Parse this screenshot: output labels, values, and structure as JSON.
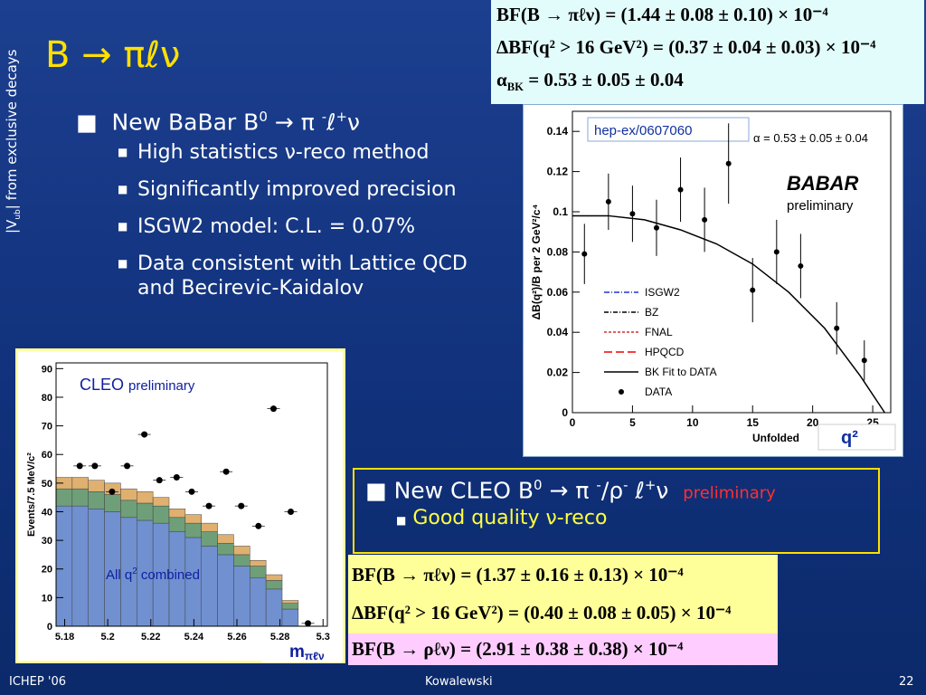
{
  "side_label": [
    "|V",
    "ub",
    "| from exclusive  decays"
  ],
  "title": "B → πℓν",
  "babar": {
    "heading": [
      "New BaBar B",
      "0",
      " → π ",
      "-",
      "ℓ",
      "+",
      "ν"
    ],
    "items": [
      "High statistics ν-reco method",
      "Significantly improved precision",
      "ISGW2 model: C.L. = 0.07%",
      "Data consistent with Lattice QCD and Becirevic-Kaidalov"
    ]
  },
  "babar_results": {
    "lines": [
      "BF(B → πℓν) = (1.44 ± 0.08 ± 0.10) × 10⁻⁴",
      "ΔBF(q² > 16 GeV²) = (0.37 ± 0.04 ± 0.03) × 10⁻⁴"
    ],
    "alpha": [
      "α",
      "BK",
      " = 0.53 ± 0.05 ± 0.04"
    ]
  },
  "babar_plot": {
    "type": "scatter",
    "y_label": "ΔB(q²)/B per 2 GeV²/c⁴",
    "x_label": "Unfolded",
    "x_unit_label": "q²",
    "note": "hep-ex/0607060",
    "fit_label": "α = 0.53 ± 0.05 ± 0.04",
    "logo": "BABAR",
    "logo_sub": "preliminary",
    "xlim": [
      0,
      26.5
    ],
    "ylim": [
      0,
      0.15
    ],
    "xticks": [
      0,
      5,
      10,
      15,
      20,
      25
    ],
    "yticks": [
      0,
      0.02,
      0.04,
      0.06,
      0.08,
      0.1,
      0.12,
      0.14
    ],
    "models": [
      {
        "name": "ISGW2",
        "color": "#2233cc",
        "dash": "6 2 1 2"
      },
      {
        "name": "BZ",
        "color": "#000000",
        "dash": "5 2 1 2"
      },
      {
        "name": "FNAL",
        "color": "#cc3333",
        "dash": "3 2"
      },
      {
        "name": "HPQCD",
        "color": "#ee0000",
        "dash": "9 4"
      }
    ],
    "fit": {
      "name": "BK Fit to DATA",
      "color": "#000000",
      "x": [
        0,
        3,
        6,
        9,
        12,
        15,
        18,
        21,
        24,
        26
      ],
      "values": [
        0.098,
        0.098,
        0.096,
        0.091,
        0.084,
        0.074,
        0.06,
        0.042,
        0.018,
        0
      ]
    },
    "data": {
      "name": "DATA",
      "x": [
        1,
        3,
        5,
        7,
        9,
        11,
        13,
        15,
        17,
        19,
        22,
        24.3
      ],
      "values": [
        0.079,
        0.105,
        0.099,
        0.092,
        0.111,
        0.096,
        0.124,
        0.061,
        0.08,
        0.073,
        0.042,
        0.026
      ],
      "errors": [
        0.015,
        0.014,
        0.014,
        0.014,
        0.016,
        0.016,
        0.02,
        0.016,
        0.016,
        0.016,
        0.013,
        0.01
      ]
    }
  },
  "cleo": {
    "heading": [
      "New CLEO B",
      "0",
      " → π ",
      "-",
      "/ρ",
      "-",
      " ℓ",
      "+",
      "ν"
    ],
    "tag": "preliminary",
    "items": [
      "Good quality ν-reco"
    ]
  },
  "cleo_results": {
    "lines": [
      "BF(B → πℓν) = (1.37 ± 0.16 ± 0.13) × 10⁻⁴",
      "ΔBF(q² > 16 GeV²) = (0.40 ± 0.08 ± 0.05) × 10⁻⁴",
      "BF(B → ρℓν) = (2.91 ± 0.38 ± 0.38) × 10⁻⁴"
    ]
  },
  "cleo_plot": {
    "type": "bar",
    "title": "CLEO",
    "subtitle": "preliminary",
    "annotation": [
      "All q",
      "2",
      " combined"
    ],
    "y_label": "Events/7.5 MeV/c²",
    "x_label": [
      "m",
      "πℓν"
    ],
    "xlim": [
      5.176,
      5.302
    ],
    "ylim": [
      0,
      92
    ],
    "xticks": [
      5.18,
      5.2,
      5.22,
      5.24,
      5.26,
      5.28,
      5.3
    ],
    "yticks": [
      0,
      10,
      20,
      30,
      40,
      50,
      60,
      70,
      80,
      90
    ],
    "bins": [
      5.176,
      5.1835,
      5.191,
      5.1985,
      5.206,
      5.2135,
      5.221,
      5.2285,
      5.236,
      5.2435,
      5.251,
      5.2585,
      5.266,
      5.2735,
      5.281,
      5.2885,
      5.296
    ],
    "series": [
      {
        "color": "#7090d0",
        "values": [
          42,
          42,
          41,
          40,
          38,
          37,
          36,
          33,
          31,
          28,
          25,
          21,
          17,
          13,
          6,
          0
        ]
      },
      {
        "color": "#6f9f78",
        "values": [
          6,
          6,
          6,
          6,
          6,
          6,
          6,
          5,
          5,
          5,
          4,
          4,
          4,
          3,
          2,
          0
        ]
      },
      {
        "color": "#e0b070",
        "values": [
          4,
          4,
          4,
          4,
          4,
          4,
          3,
          3,
          3,
          3,
          3,
          3,
          2,
          2,
          1,
          0
        ]
      }
    ],
    "data": {
      "x": [
        5.187,
        5.194,
        5.202,
        5.209,
        5.217,
        5.224,
        5.232,
        5.239,
        5.247,
        5.255,
        5.262,
        5.27,
        5.277,
        5.285,
        5.293
      ],
      "values": [
        56,
        56,
        47,
        56,
        67,
        51,
        52,
        47,
        42,
        54,
        42,
        35,
        76,
        40,
        1
      ]
    }
  },
  "footer": {
    "left": "ICHEP '06",
    "center": "Kowalewski",
    "right": "22"
  }
}
